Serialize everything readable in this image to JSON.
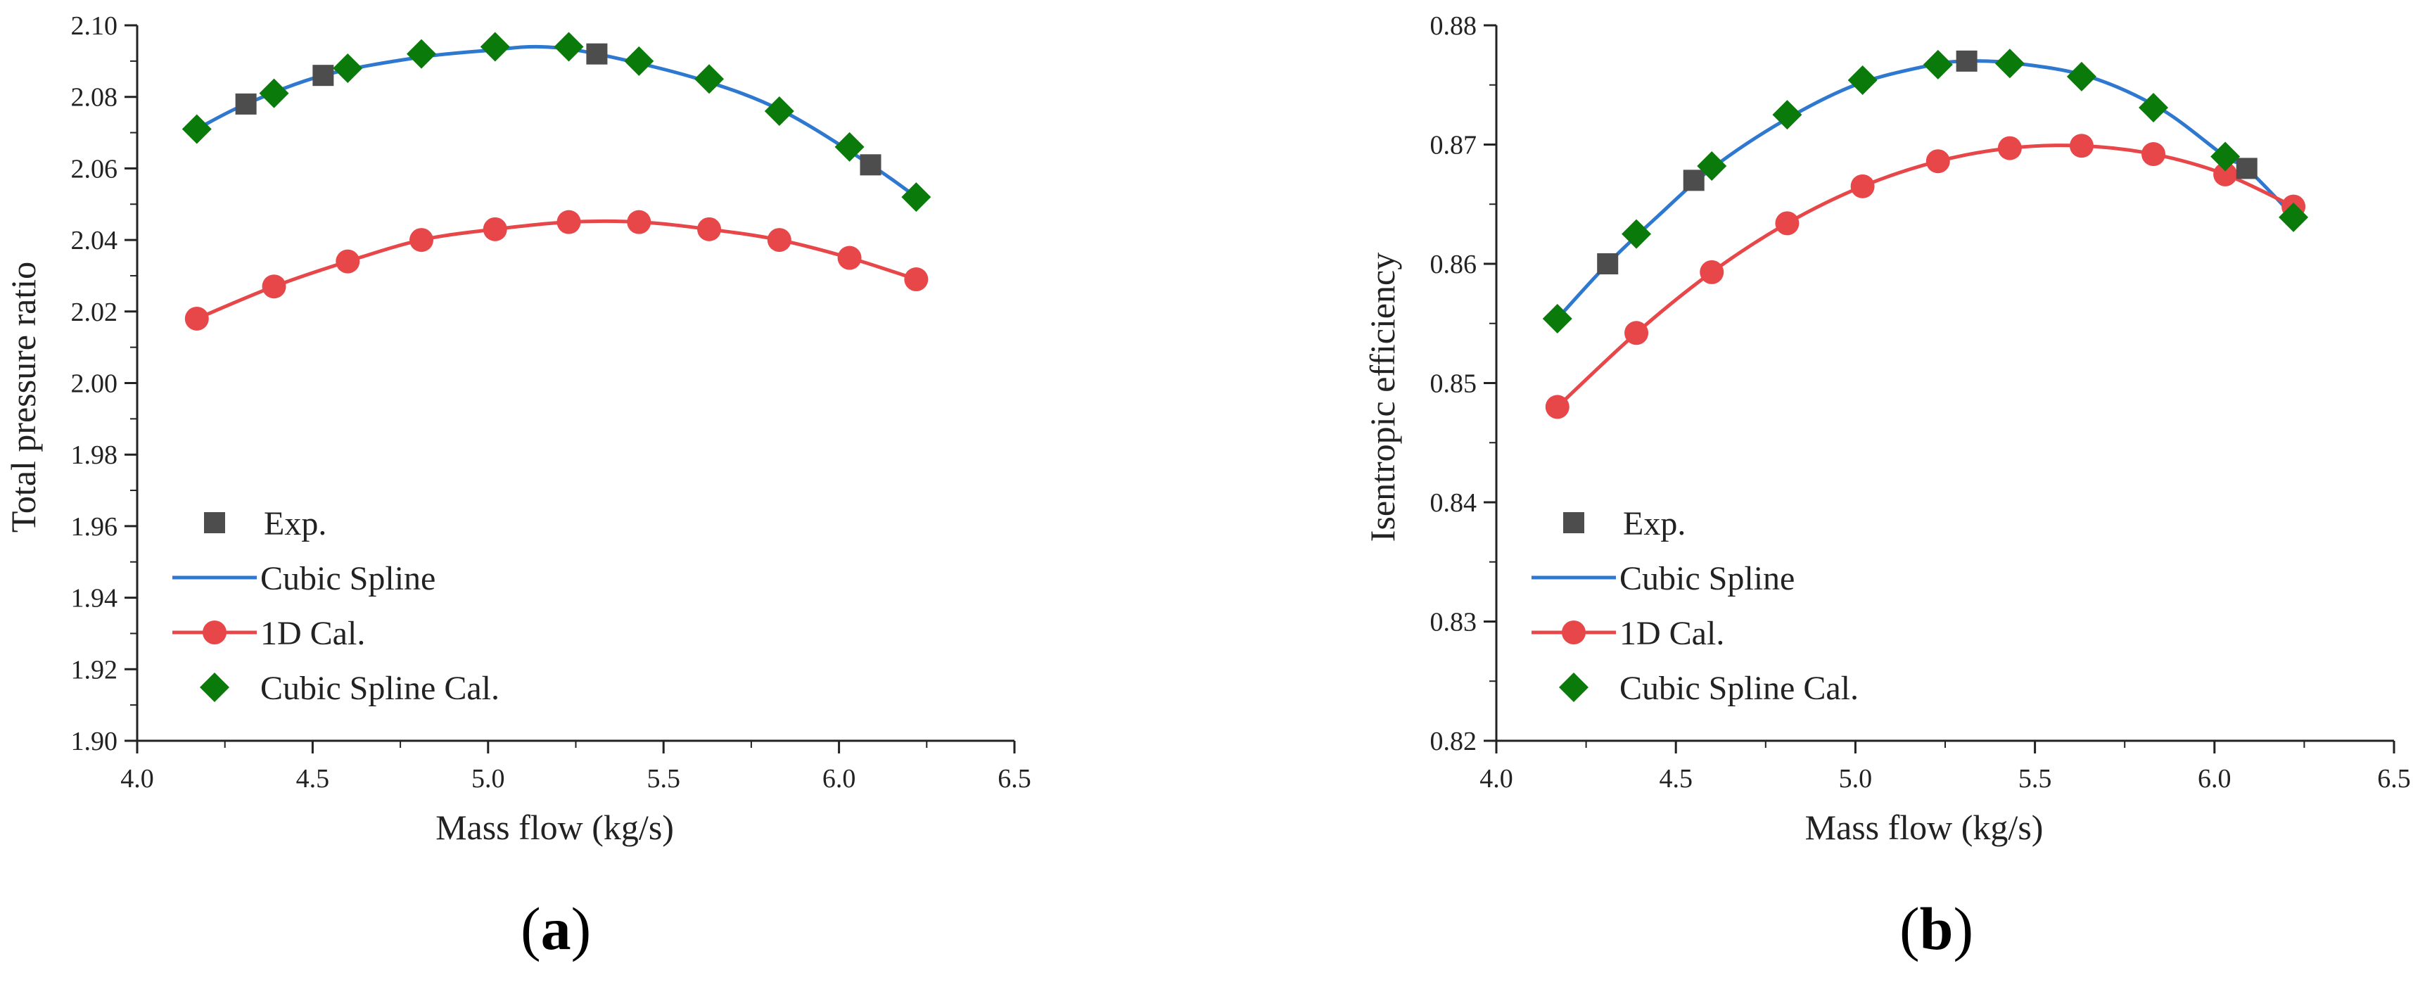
{
  "figure": {
    "captions": [
      {
        "open": "(",
        "label": "a",
        "close": ")"
      },
      {
        "open": "(",
        "label": "b",
        "close": ")"
      }
    ]
  },
  "colors": {
    "exp": "#4d4d4d",
    "spline": "#2f78d0",
    "cal1d": "#e8474a",
    "splineCal": "#0a7a0a",
    "axis": "#222222"
  },
  "chart_data": [
    {
      "type": "scatter",
      "title": "",
      "xlabel": "Mass flow (kg/s)",
      "ylabel": "Total pressure ratio",
      "xlim": [
        4.0,
        6.5
      ],
      "ylim": [
        1.9,
        2.1
      ],
      "xticks": [
        "4.0",
        "4.5",
        "5.0",
        "5.5",
        "6.0",
        "6.5"
      ],
      "yticks": [
        "1.90",
        "1.92",
        "1.94",
        "1.96",
        "1.98",
        "2.00",
        "2.02",
        "2.04",
        "2.06",
        "2.08",
        "2.10"
      ],
      "legend_position": "bottom-left",
      "series": [
        {
          "name": "Exp.",
          "kind": "square",
          "x": [
            4.31,
            4.53,
            5.31,
            6.09
          ],
          "y": [
            2.078,
            2.086,
            2.092,
            2.061
          ]
        },
        {
          "name": "Cubic Spline",
          "kind": "line",
          "x": [
            4.17,
            4.31,
            4.53,
            4.8,
            5.0,
            5.15,
            5.31,
            5.6,
            5.84,
            6.09,
            6.22
          ],
          "y": [
            2.071,
            2.078,
            2.086,
            2.091,
            2.093,
            2.094,
            2.092,
            2.085,
            2.076,
            2.061,
            2.052
          ]
        },
        {
          "name": "1D Cal.",
          "kind": "circle",
          "x": [
            4.17,
            4.39,
            4.6,
            4.81,
            5.02,
            5.23,
            5.43,
            5.63,
            5.83,
            6.03,
            6.22
          ],
          "y": [
            2.018,
            2.027,
            2.034,
            2.04,
            2.043,
            2.045,
            2.045,
            2.043,
            2.04,
            2.035,
            2.029
          ]
        },
        {
          "name": "Cubic Spline Cal.",
          "kind": "diamond",
          "x": [
            4.17,
            4.39,
            4.6,
            4.81,
            5.02,
            5.23,
            5.43,
            5.63,
            5.83,
            6.03,
            6.22
          ],
          "y": [
            2.071,
            2.081,
            2.088,
            2.092,
            2.094,
            2.094,
            2.09,
            2.085,
            2.076,
            2.066,
            2.052
          ]
        }
      ]
    },
    {
      "type": "scatter",
      "title": "",
      "xlabel": "Mass flow (kg/s)",
      "ylabel": "Isentropic efficiency",
      "xlim": [
        4.0,
        6.5
      ],
      "ylim": [
        0.82,
        0.88
      ],
      "xticks": [
        "4.0",
        "4.5",
        "5.0",
        "5.5",
        "6.0",
        "6.5"
      ],
      "yticks": [
        "0.82",
        "0.83",
        "0.84",
        "0.85",
        "0.86",
        "0.87",
        "0.88"
      ],
      "legend_position": "bottom-left",
      "series": [
        {
          "name": "Exp.",
          "kind": "square",
          "x": [
            4.31,
            4.55,
            5.31,
            6.09
          ],
          "y": [
            0.86,
            0.867,
            0.877,
            0.868
          ]
        },
        {
          "name": "Cubic Spline",
          "kind": "line",
          "x": [
            4.17,
            4.31,
            4.45,
            4.6,
            4.8,
            5.0,
            5.2,
            5.31,
            5.45,
            5.65,
            5.85,
            6.03,
            6.09,
            6.22
          ],
          "y": [
            0.8554,
            0.86,
            0.864,
            0.868,
            0.872,
            0.875,
            0.8766,
            0.877,
            0.8768,
            0.8757,
            0.873,
            0.869,
            0.868,
            0.864
          ]
        },
        {
          "name": "1D Cal.",
          "kind": "circle",
          "x": [
            4.17,
            4.39,
            4.6,
            4.81,
            5.02,
            5.23,
            5.43,
            5.63,
            5.83,
            6.03,
            6.22
          ],
          "y": [
            0.848,
            0.8542,
            0.8593,
            0.8634,
            0.8665,
            0.8686,
            0.8697,
            0.8699,
            0.8692,
            0.8675,
            0.8648
          ]
        },
        {
          "name": "Cubic Spline Cal.",
          "kind": "diamond",
          "x": [
            4.17,
            4.39,
            4.6,
            4.81,
            5.02,
            5.23,
            5.43,
            5.63,
            5.83,
            6.03,
            6.22
          ],
          "y": [
            0.8554,
            0.8625,
            0.8682,
            0.8725,
            0.8754,
            0.8767,
            0.8768,
            0.8757,
            0.8731,
            0.869,
            0.8639
          ]
        }
      ]
    }
  ]
}
